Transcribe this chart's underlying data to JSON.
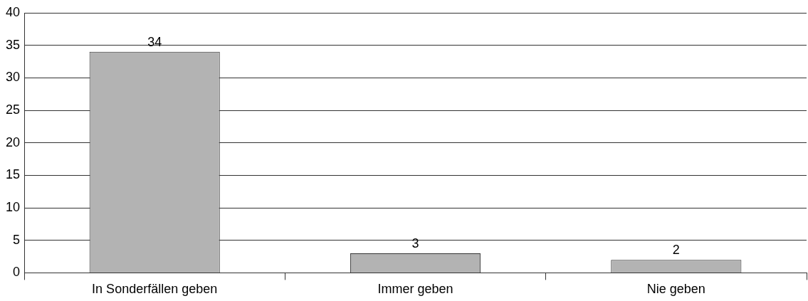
{
  "chart_data": {
    "type": "bar",
    "categories": [
      "In Sonderfällen geben",
      "Immer geben",
      "Nie geben"
    ],
    "values": [
      34,
      3,
      2
    ],
    "color": "#b3b3b3",
    "ylim": [
      0,
      40
    ],
    "yticks": [
      0,
      5,
      10,
      15,
      20,
      25,
      30,
      35,
      40
    ],
    "grid": "y",
    "data_labels": true
  }
}
